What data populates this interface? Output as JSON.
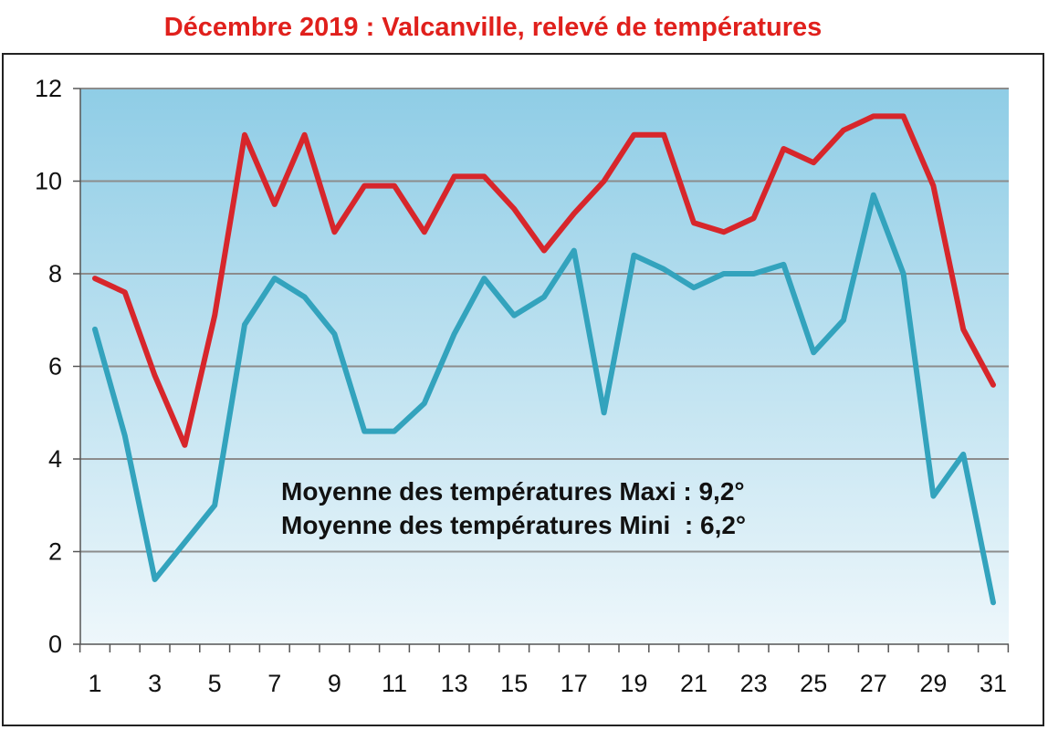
{
  "chart_data": {
    "type": "line",
    "title": "Décembre 2019 : Valcanville, relevé de températures",
    "xlabel": "",
    "ylabel": "",
    "x": [
      1,
      2,
      3,
      4,
      5,
      6,
      7,
      8,
      9,
      10,
      11,
      12,
      13,
      14,
      15,
      16,
      17,
      18,
      19,
      20,
      21,
      22,
      23,
      24,
      25,
      26,
      27,
      28,
      29,
      30,
      31
    ],
    "x_tick_labels": [
      "1",
      "3",
      "5",
      "7",
      "9",
      "11",
      "13",
      "15",
      "17",
      "19",
      "21",
      "23",
      "25",
      "27",
      "29",
      "31"
    ],
    "y_tick_labels": [
      "0",
      "2",
      "4",
      "6",
      "8",
      "10",
      "12"
    ],
    "ylim": [
      0,
      12
    ],
    "grid": true,
    "legend": "none",
    "series": [
      {
        "color": "#d7262b",
        "values": [
          7.9,
          7.6,
          5.8,
          4.3,
          7.1,
          11.0,
          9.5,
          11.0,
          8.9,
          9.9,
          9.9,
          8.9,
          10.1,
          10.1,
          9.4,
          8.5,
          9.3,
          10.0,
          11.0,
          11.0,
          9.1,
          8.9,
          9.2,
          10.7,
          10.4,
          11.1,
          11.4,
          11.4,
          9.9,
          6.8,
          5.6
        ]
      },
      {
        "color": "#33a3bd",
        "values": [
          6.8,
          4.5,
          1.4,
          2.2,
          3.0,
          6.9,
          7.9,
          7.5,
          6.7,
          4.6,
          4.6,
          5.2,
          6.7,
          7.9,
          7.1,
          7.5,
          8.5,
          5.0,
          8.4,
          8.1,
          7.7,
          8.0,
          8.0,
          8.2,
          6.3,
          7.0,
          9.7,
          8.0,
          3.2,
          4.1,
          0.9
        ]
      }
    ],
    "annotations": [
      "Moyenne des températures Maxi : 9,2°",
      "Moyenne des températures Mini  : 6,2°"
    ],
    "colors": {
      "title": "#e0201c",
      "plot_bg_top": "#8fcde6",
      "plot_bg_bottom": "#eef7fb",
      "grid": "#8c8c8c"
    }
  }
}
